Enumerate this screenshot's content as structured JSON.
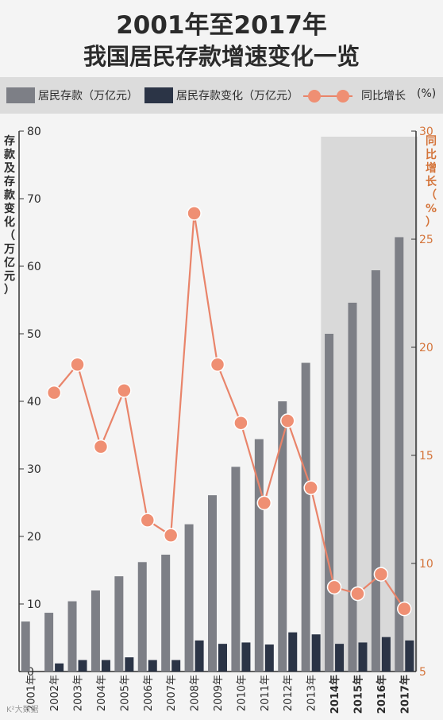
{
  "header": {
    "title_line1": "2001年至2017年",
    "title_line2": "我国居民存款增速变化一览"
  },
  "legend": {
    "deposits_label": "居民存款（万亿元）",
    "change_label": "居民存款变化（万亿元）",
    "growth_label": "同比增长",
    "growth_unit": "(%)"
  },
  "axes": {
    "left_label": "存款及存款变化（万亿元）",
    "right_label": "同比增长（%）"
  },
  "credit": "K²大数据",
  "colors": {
    "deposits": "#7d7f86",
    "change": "#2b3446",
    "growth_line": "#e9846a",
    "growth_marker": "#ef8f73",
    "highlight_bg": "#d9d9d9",
    "right_axis": "#d4743a"
  },
  "chart_data": {
    "type": "bar",
    "categories": [
      "2001年",
      "2002年",
      "2003年",
      "2004年",
      "2005年",
      "2006年",
      "2007年",
      "2008年",
      "2009年",
      "2010年",
      "2011年",
      "2012年",
      "2013年",
      "2014年",
      "2015年",
      "2016年",
      "2017年"
    ],
    "series": [
      {
        "name": "居民存款（万亿元）",
        "axis": "left",
        "type": "bar",
        "values": [
          7.4,
          8.7,
          10.4,
          12.0,
          14.1,
          16.2,
          17.3,
          21.8,
          26.1,
          30.3,
          34.4,
          40.0,
          45.7,
          50.0,
          54.6,
          59.4,
          64.3
        ]
      },
      {
        "name": "居民存款变化（万亿元）",
        "axis": "left",
        "type": "bar",
        "values": [
          null,
          1.2,
          1.7,
          1.7,
          2.1,
          1.7,
          1.7,
          4.6,
          4.1,
          4.3,
          4.0,
          5.8,
          5.5,
          4.1,
          4.3,
          5.1,
          4.6
        ]
      },
      {
        "name": "同比增长",
        "axis": "right",
        "type": "line",
        "values": [
          null,
          17.9,
          19.2,
          15.4,
          18.0,
          12.0,
          11.3,
          26.2,
          19.2,
          16.5,
          12.8,
          16.6,
          13.5,
          8.9,
          8.6,
          9.5,
          7.9
        ]
      }
    ],
    "ylim_left": [
      0,
      80
    ],
    "yticks_left": [
      0,
      10,
      20,
      30,
      40,
      50,
      60,
      70,
      80
    ],
    "ylim_right": [
      5,
      30
    ],
    "yticks_right": [
      5,
      10,
      15,
      20,
      25,
      30
    ],
    "highlight_categories": [
      "2014年",
      "2015年",
      "2016年",
      "2017年"
    ],
    "grid": false
  }
}
